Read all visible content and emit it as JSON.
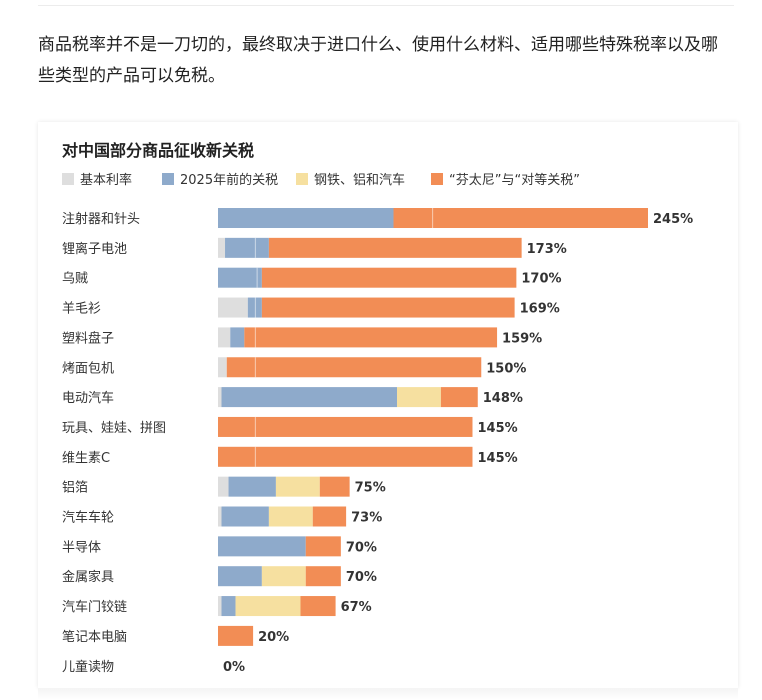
{
  "article": {
    "intro": "商品税率并不是一刀切的，最终取决于进口什么、使用什么材料、适用哪些特殊税率以及哪些类型的产品可以免税。"
  },
  "colors": {
    "base": "#dedede",
    "pre2025": "#8eaacb",
    "steel": "#f6e0a0",
    "fentanyl": "#f28d55",
    "divider": "#ffffff",
    "text": "#333333",
    "title": "#222222"
  },
  "chart_data": {
    "type": "bar",
    "orientation": "horizontal",
    "stacked": true,
    "title": "对中国部分商品征收新关税",
    "legend_position": "top-left",
    "xlim": [
      0,
      245
    ],
    "categories": [
      "注射器和针头",
      "锂离子电池",
      "乌贼",
      "羊毛衫",
      "塑料盘子",
      "烤面包机",
      "电动汽车",
      "玩具、娃娃、拼图",
      "维生素C",
      "铝箔",
      "汽车车轮",
      "半导体",
      "金属家具",
      "汽车门铰链",
      "笔记本电脑",
      "儿童读物"
    ],
    "totals_labels": [
      "245%",
      "173%",
      "170%",
      "169%",
      "159%",
      "150%",
      "148%",
      "145%",
      "145%",
      "75%",
      "73%",
      "70%",
      "70%",
      "67%",
      "20%",
      "0%"
    ],
    "series": [
      {
        "name": "基本利率",
        "color_key": "base",
        "values": [
          0,
          4,
          0,
          17,
          7,
          5,
          2,
          0,
          0,
          6,
          2,
          0,
          0,
          2,
          0,
          0
        ]
      },
      {
        "name": "2025年前的关税",
        "color_key": "pre2025",
        "values": [
          100,
          25,
          25,
          8,
          8,
          0,
          100,
          0,
          0,
          27,
          27,
          50,
          25,
          8,
          0,
          0
        ]
      },
      {
        "name": "钢铁、铝和汽车",
        "color_key": "steel",
        "values": [
          0,
          0,
          0,
          0,
          0,
          0,
          25,
          0,
          0,
          25,
          25,
          0,
          25,
          37,
          0,
          0
        ]
      },
      {
        "name": "“芬太尼”与“对等关税”",
        "color_key": "fentanyl",
        "values": [
          145,
          144,
          145,
          144,
          144,
          145,
          21,
          145,
          145,
          17,
          19,
          20,
          20,
          20,
          20,
          0
        ]
      }
    ],
    "dividers": [
      [
        122
      ],
      [
        21
      ],
      [
        22
      ],
      [
        21
      ],
      [
        21
      ],
      [
        21
      ],
      [],
      [
        21
      ],
      [
        21
      ],
      [],
      [],
      [],
      [],
      [],
      [],
      []
    ]
  }
}
